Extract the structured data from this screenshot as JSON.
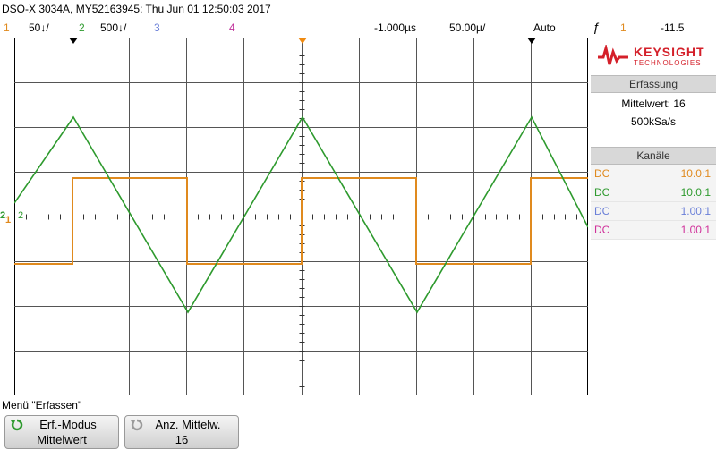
{
  "header": {
    "title": "DSO-X 3034A, MY52163945: Thu Jun 01 12:50:03 2017",
    "channels": [
      {
        "number": "1",
        "scale": "50↓/",
        "color": "#e08a1e"
      },
      {
        "number": "2",
        "scale": "500↓/",
        "color": "#2e9a2e"
      },
      {
        "number": "3",
        "scale": "",
        "color": "#6a7fd8"
      },
      {
        "number": "4",
        "scale": "",
        "color": "#c0309a"
      }
    ],
    "delay": "-1.000µs",
    "timebase": "50.00µ/",
    "trigger_mode": "Auto",
    "trigger_slope_symbol": "ƒ",
    "trigger_source": "1",
    "trigger_level": "-11.5"
  },
  "logo": {
    "brand": "KEYSIGHT",
    "sub": "TECHNOLOGIES",
    "color": "#d4202a"
  },
  "acquisition": {
    "heading": "Erfassung",
    "mode": "Mittelwert: 16",
    "rate": "500kSa/s"
  },
  "channels_panel": {
    "heading": "Kanäle",
    "rows": [
      {
        "coupling": "DC",
        "probe": "10.0:1",
        "color": "#e08a1e"
      },
      {
        "coupling": "DC",
        "probe": "10.0:1",
        "color": "#2e9a2e"
      },
      {
        "coupling": "DC",
        "probe": "1.00:1",
        "color": "#6a7fd8"
      },
      {
        "coupling": "DC",
        "probe": "1.00:1",
        "color": "#d0309a"
      }
    ]
  },
  "markers": {
    "ch1_ground": "1",
    "ch2_ground": "2"
  },
  "menu": {
    "title": "Menü \"Erfassen\"",
    "softkeys": [
      {
        "label": "Erf.-Modus",
        "value": "Mittelwert"
      },
      {
        "label": "Anz. Mittelw.",
        "value": "16"
      }
    ]
  }
}
